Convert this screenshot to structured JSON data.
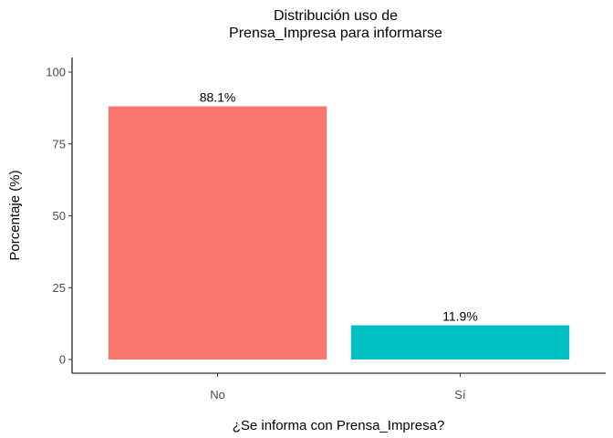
{
  "chart_data": {
    "type": "bar",
    "title_lines": [
      "Distribución uso de",
      "Prensa_Impresa para informarse"
    ],
    "xlabel": "¿Se informa con Prensa_Impresa?",
    "ylabel": "Porcentaje (%)",
    "categories": [
      "No",
      "Sí"
    ],
    "values": [
      88.1,
      11.9
    ],
    "data_labels": [
      "88.1%",
      "11.9%"
    ],
    "colors": [
      "#F8766D",
      "#00BFC4"
    ],
    "ylim": [
      0,
      100
    ],
    "yticks": [
      0,
      25,
      50,
      75,
      100
    ],
    "ytick_labels": [
      "0",
      "25",
      "50",
      "75",
      "100"
    ],
    "grid": false,
    "legend": "none"
  }
}
